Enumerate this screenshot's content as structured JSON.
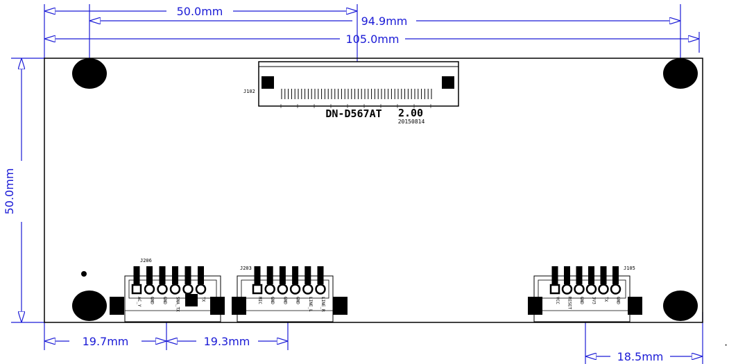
{
  "dimensions": {
    "top_50": "50.0mm",
    "top_94": "94.9mm",
    "top_105": "105.0mm",
    "left_height": "50.0mm",
    "bottom_19_7": "19.7mm",
    "bottom_19_3": "19.3mm",
    "bottom_18_5": "18.5mm"
  },
  "board": {
    "model": "DN-D567AT",
    "version": "2.00",
    "date": "20150814"
  },
  "connectors": {
    "fpc": {
      "ref": "J102"
    },
    "left": {
      "ref": "J206",
      "pins": [
        "AC_Y",
        "GND",
        "GND",
        "SNA_TX",
        "RX",
        "TX"
      ]
    },
    "middle": {
      "ref": "J203",
      "pins": [
        "MIC",
        "GND",
        "GND",
        "GND",
        "LINE_L",
        "LINE_R"
      ]
    },
    "right": {
      "ref": "J105",
      "pins": [
        "VCC",
        "RESET",
        "GND",
        "3V3",
        "TX",
        "GND"
      ]
    }
  },
  "colors": {
    "dimension": "#1a1ad6",
    "outline": "#000000"
  }
}
